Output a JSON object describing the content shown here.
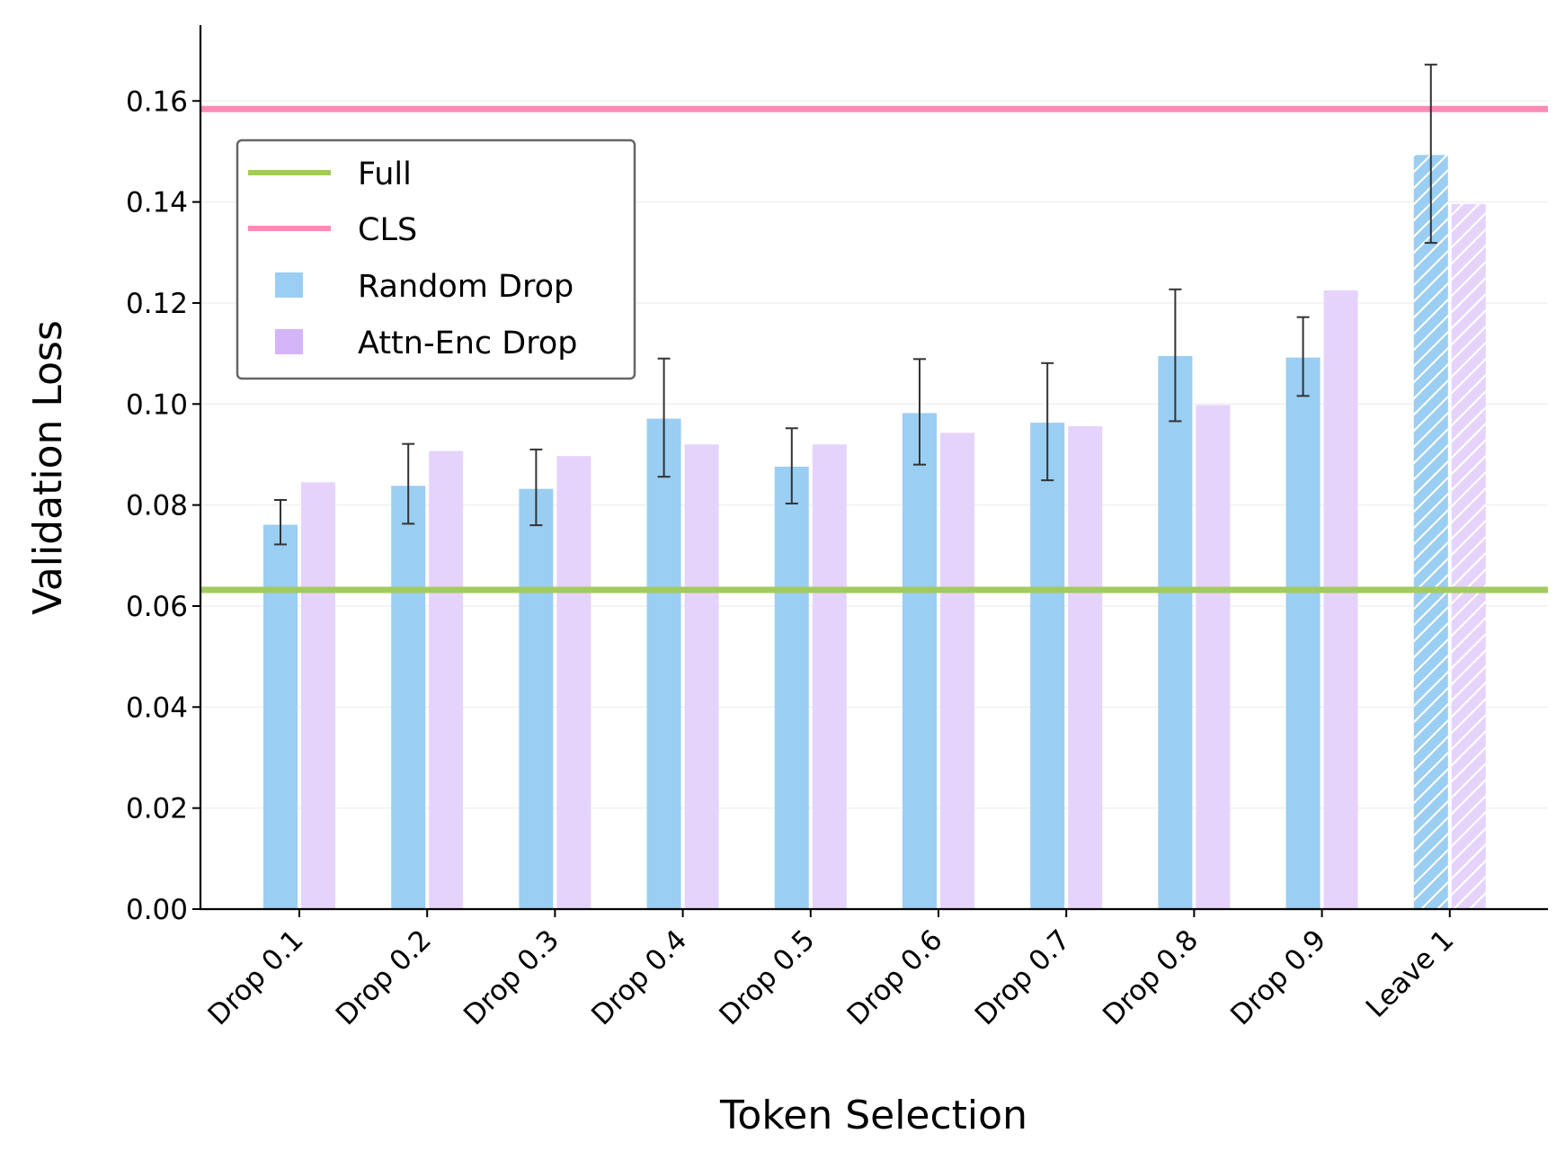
{
  "chart_data": {
    "type": "bar",
    "title": "",
    "xlabel": "Token Selection",
    "ylabel": "Validation Loss",
    "ylim": [
      0,
      0.175
    ],
    "yticks": [
      0.0,
      0.02,
      0.04,
      0.06,
      0.08,
      0.1,
      0.12,
      0.14,
      0.16
    ],
    "ytick_labels": [
      "0.00",
      "0.02",
      "0.04",
      "0.06",
      "0.08",
      "0.10",
      "0.12",
      "0.14",
      "0.16"
    ],
    "grid": "horizontal-light",
    "categories": [
      "Drop 0.1",
      "Drop 0.2",
      "Drop 0.3",
      "Drop 0.4",
      "Drop 0.5",
      "Drop 0.6",
      "Drop 0.7",
      "Drop 0.8",
      "Drop 0.9",
      "Leave 1"
    ],
    "hatched_categories": [
      "Leave 1"
    ],
    "series": [
      {
        "name": "Random Drop",
        "color": "#9ACEF2",
        "values": [
          0.0761,
          0.0838,
          0.0832,
          0.0971,
          0.0876,
          0.0982,
          0.0963,
          0.1095,
          0.1092,
          0.1493
        ],
        "error_low": [
          0.0722,
          0.0763,
          0.076,
          0.0856,
          0.0803,
          0.088,
          0.0849,
          0.0966,
          0.1016,
          0.1319
        ],
        "error_high": [
          0.081,
          0.0921,
          0.091,
          0.109,
          0.0952,
          0.1089,
          0.1081,
          0.1227,
          0.1172,
          0.1672
        ]
      },
      {
        "name": "Attn-Enc Drop",
        "color": "#E6D3FC",
        "values": [
          0.0845,
          0.0907,
          0.0897,
          0.092,
          0.092,
          0.0943,
          0.0956,
          0.0998,
          0.1225,
          0.1396
        ]
      }
    ],
    "reference_lines": [
      {
        "name": "Full",
        "value": 0.0632,
        "color": "#A2CB5E"
      },
      {
        "name": "CLS",
        "value": 0.1584,
        "color": "#FF8AB6"
      }
    ],
    "legend": {
      "position": "upper-left",
      "entries": [
        {
          "label": "Full",
          "kind": "line",
          "color": "#A2CB5E"
        },
        {
          "label": "CLS",
          "kind": "line",
          "color": "#FF8AB6"
        },
        {
          "label": "Random Drop",
          "kind": "patch",
          "color": "#9ACEF2"
        },
        {
          "label": "Attn-Enc Drop",
          "kind": "patch",
          "color": "#D5B5FA"
        }
      ]
    }
  }
}
